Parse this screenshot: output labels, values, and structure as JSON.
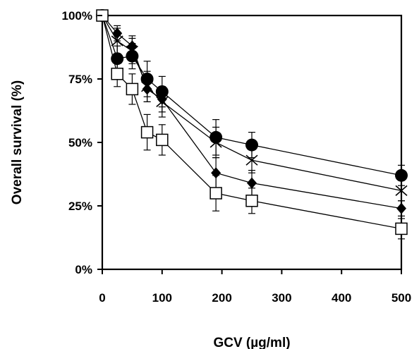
{
  "chart_data": {
    "type": "line",
    "xlabel": "GCV (µg/ml)",
    "ylabel": "Overall survival (%)",
    "xlim": [
      0,
      500
    ],
    "ylim": [
      0,
      100
    ],
    "xticks": [
      0,
      100,
      200,
      300,
      400,
      500
    ],
    "xtick_labels": [
      "0",
      "100",
      "200",
      "300",
      "400",
      "500"
    ],
    "yticks": [
      0,
      25,
      50,
      75,
      100
    ],
    "ytick_labels": [
      "0%",
      "25%",
      "50%",
      "75%",
      "100%"
    ],
    "grid": false,
    "legend": "none",
    "x": [
      0,
      25,
      50,
      75,
      100,
      190,
      250,
      500
    ],
    "series": [
      {
        "marker": "filled-circle",
        "values": [
          100,
          83,
          84,
          75,
          70,
          52,
          49,
          37
        ],
        "errors": [
          2,
          5,
          5,
          7,
          6,
          7,
          5,
          4
        ]
      },
      {
        "marker": "x",
        "values": [
          100,
          90,
          86,
          72,
          66,
          50,
          43,
          31
        ],
        "errors": [
          2,
          5,
          5,
          6,
          6,
          6,
          5,
          4
        ]
      },
      {
        "marker": "filled-diamond",
        "values": [
          100,
          93,
          88,
          71,
          67,
          38,
          34,
          24
        ],
        "errors": [
          2,
          3,
          4,
          5,
          5,
          6,
          5,
          3
        ]
      },
      {
        "marker": "open-square",
        "values": [
          100,
          77,
          71,
          54,
          51,
          30,
          27,
          16
        ],
        "errors": [
          2,
          5,
          6,
          7,
          6,
          7,
          5,
          4
        ]
      }
    ]
  }
}
